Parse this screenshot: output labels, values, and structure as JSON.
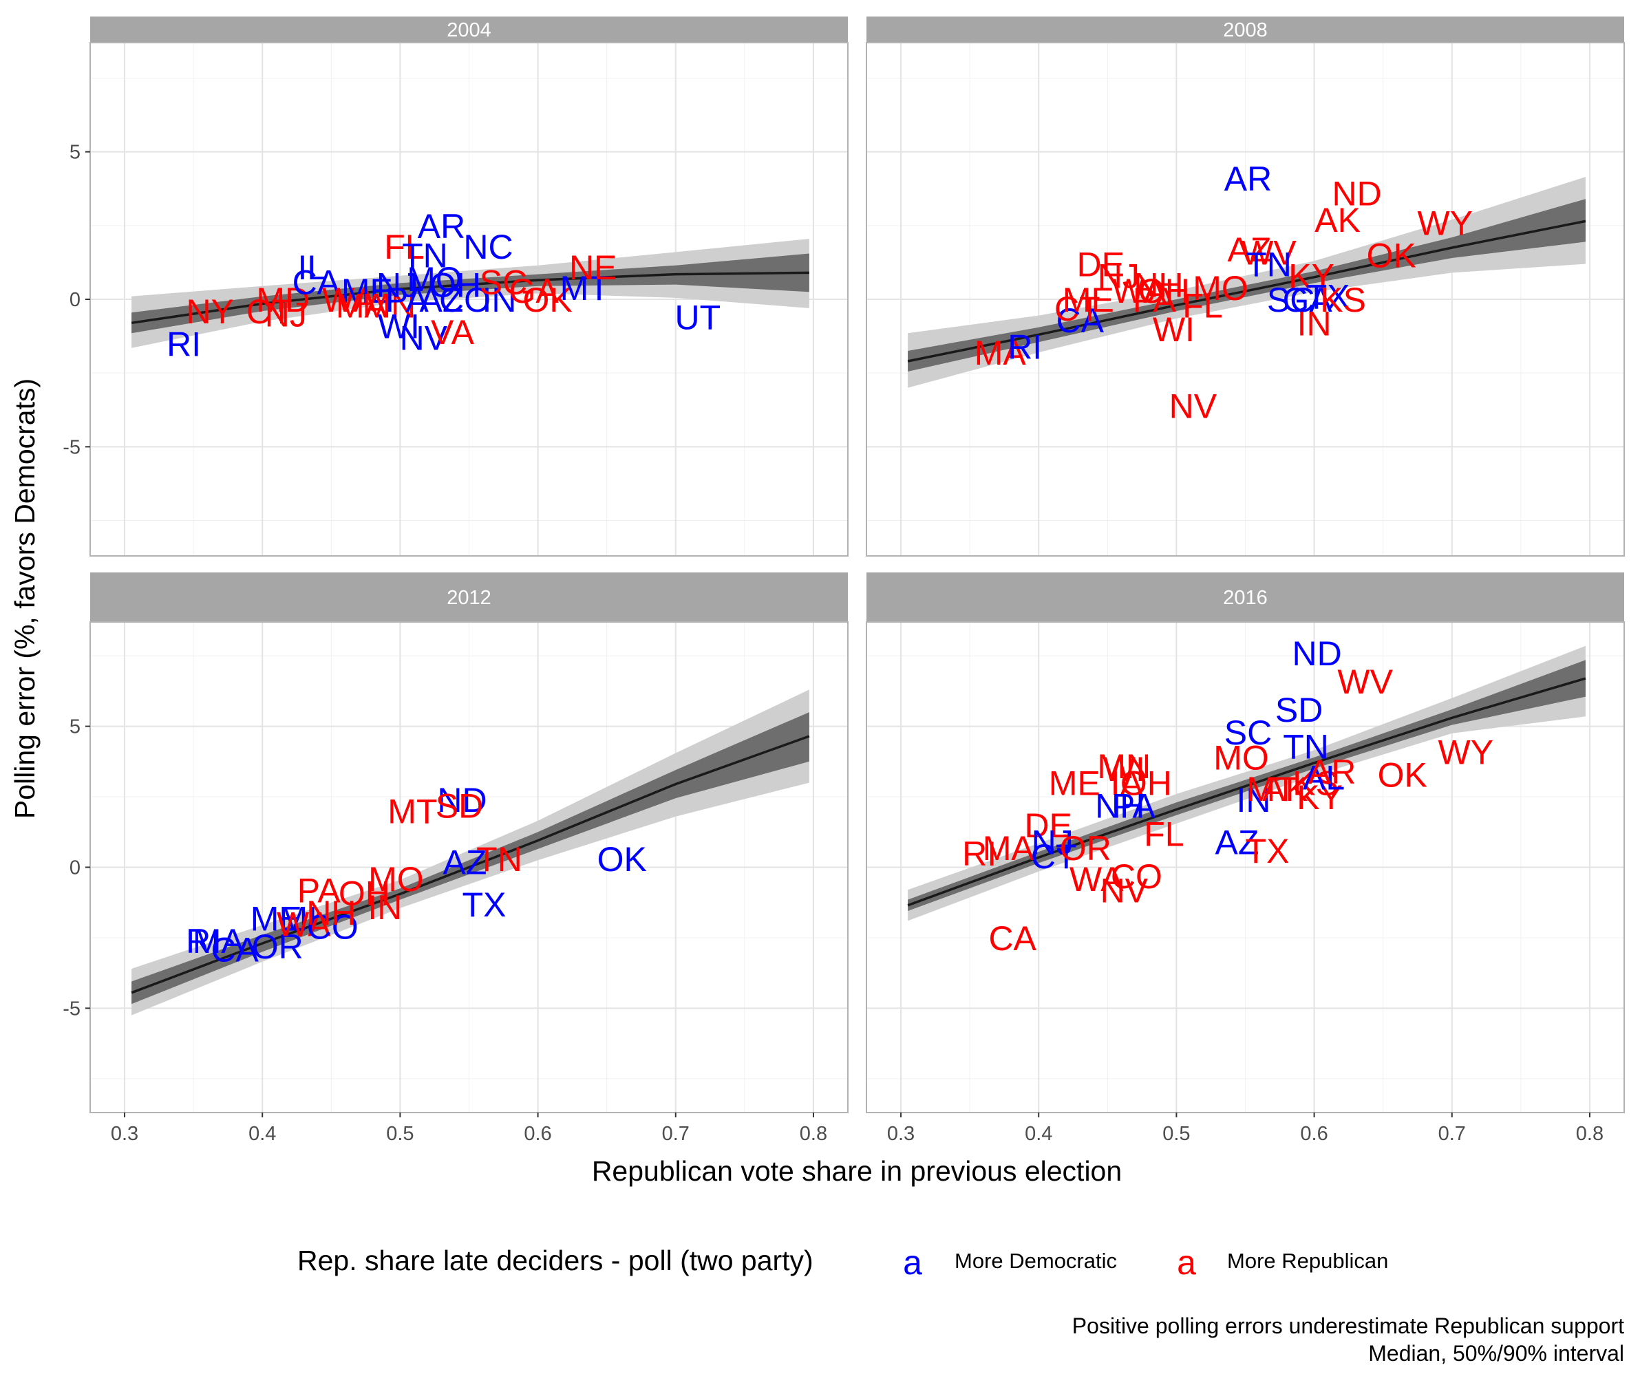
{
  "chart_data": {
    "type": "scatter",
    "facets": [
      "2004",
      "2008",
      "2012",
      "2016"
    ],
    "xlabel": "Republican vote share in previous election",
    "ylabel": "Polling error (%, favors Democrats)",
    "xlim": [
      0.275,
      0.825
    ],
    "ylim": [
      -8.7,
      8.7
    ],
    "x_ticks": [
      0.3,
      0.4,
      0.5,
      0.6,
      0.7,
      0.8
    ],
    "x_tick_labels": [
      "0.3",
      "0.4",
      "0.5",
      "0.6",
      "0.7",
      "0.8"
    ],
    "y_ticks": [
      -5,
      0,
      5
    ],
    "y_tick_labels": [
      "-5",
      "0",
      "5"
    ],
    "grid": true,
    "legend": {
      "title": "Rep. share late deciders - poll (two party)",
      "position": "bottom",
      "key_glyph": "a",
      "entries": [
        {
          "label": "More Democratic",
          "color": "#0000ff"
        },
        {
          "label": "More Republican",
          "color": "#ff0000"
        }
      ]
    },
    "caption": [
      "Positive polling errors underestimate Republican support",
      "Median, 50%/90% interval"
    ],
    "colors": {
      "dem": "#0000ff",
      "rep": "#ff0000",
      "line": "#1a1a1a",
      "band_inner": "#6e6e6e",
      "band_outer": "#cfcfcf",
      "strip": "#a6a6a6"
    },
    "panels": [
      {
        "title": "2004",
        "points": [
          {
            "label": "RI",
            "x": 0.343,
            "y": -1.5,
            "party": "dem"
          },
          {
            "label": "NY",
            "x": 0.362,
            "y": -0.4,
            "party": "rep"
          },
          {
            "label": "CT",
            "x": 0.405,
            "y": -0.4,
            "party": "rep"
          },
          {
            "label": "NJ",
            "x": 0.417,
            "y": -0.5,
            "party": "rep"
          },
          {
            "label": "MD",
            "x": 0.415,
            "y": 0.0,
            "party": "rep"
          },
          {
            "label": "IL",
            "x": 0.436,
            "y": 1.1,
            "party": "dem"
          },
          {
            "label": "CA",
            "x": 0.439,
            "y": 0.6,
            "party": "dem"
          },
          {
            "label": "WA",
            "x": 0.463,
            "y": 0.0,
            "party": "rep"
          },
          {
            "label": "ME",
            "x": 0.476,
            "y": 0.3,
            "party": "dem"
          },
          {
            "label": "MA",
            "x": 0.472,
            "y": -0.2,
            "party": "rep"
          },
          {
            "label": "MN",
            "x": 0.492,
            "y": -0.2,
            "party": "rep"
          },
          {
            "label": "WI",
            "x": 0.499,
            "y": -0.9,
            "party": "dem"
          },
          {
            "label": "NJ",
            "x": 0.498,
            "y": 0.5,
            "party": "dem"
          },
          {
            "label": "PA",
            "x": 0.505,
            "y": 0.0,
            "party": "dem"
          },
          {
            "label": "FL",
            "x": 0.503,
            "y": 1.8,
            "party": "rep"
          },
          {
            "label": "TN",
            "x": 0.518,
            "y": 1.5,
            "party": "dem"
          },
          {
            "label": "AR",
            "x": 0.53,
            "y": 2.5,
            "party": "dem"
          },
          {
            "label": "NC",
            "x": 0.564,
            "y": 1.8,
            "party": "dem"
          },
          {
            "label": "MO",
            "x": 0.525,
            "y": 0.7,
            "party": "dem"
          },
          {
            "label": "OH",
            "x": 0.54,
            "y": 0.5,
            "party": "dem"
          },
          {
            "label": "AZ",
            "x": 0.53,
            "y": 0.0,
            "party": "dem"
          },
          {
            "label": "CO",
            "x": 0.547,
            "y": 0.0,
            "party": "dem"
          },
          {
            "label": "IN",
            "x": 0.572,
            "y": 0.0,
            "party": "dem"
          },
          {
            "label": "SC",
            "x": 0.575,
            "y": 0.6,
            "party": "rep"
          },
          {
            "label": "GA",
            "x": 0.597,
            "y": 0.3,
            "party": "rep"
          },
          {
            "label": "OK",
            "x": 0.607,
            "y": 0.0,
            "party": "rep"
          },
          {
            "label": "MT",
            "x": 0.634,
            "y": 0.4,
            "party": "dem"
          },
          {
            "label": "NE",
            "x": 0.64,
            "y": 1.1,
            "party": "rep"
          },
          {
            "label": "NV",
            "x": 0.517,
            "y": -1.3,
            "party": "dem"
          },
          {
            "label": "VA",
            "x": 0.538,
            "y": -1.1,
            "party": "rep"
          },
          {
            "label": "UT",
            "x": 0.716,
            "y": -0.6,
            "party": "dem"
          }
        ],
        "trend": {
          "x": [
            0.305,
            0.4,
            0.5,
            0.6,
            0.7,
            0.797
          ],
          "median": [
            -0.8,
            -0.15,
            0.35,
            0.65,
            0.85,
            0.9
          ],
          "q50_lo": [
            -1.15,
            -0.4,
            0.15,
            0.45,
            0.5,
            0.25
          ],
          "q50_hi": [
            -0.45,
            0.1,
            0.55,
            0.85,
            1.15,
            1.55
          ],
          "q90_lo": [
            -1.65,
            -0.75,
            -0.1,
            0.2,
            0.05,
            -0.3
          ],
          "q90_hi": [
            0.1,
            0.45,
            0.8,
            1.15,
            1.6,
            2.05
          ]
        }
      },
      {
        "title": "2008",
        "points": [
          {
            "label": "MA",
            "x": 0.372,
            "y": -1.8,
            "party": "rep"
          },
          {
            "label": "RI",
            "x": 0.39,
            "y": -1.6,
            "party": "dem"
          },
          {
            "label": "CA",
            "x": 0.43,
            "y": -0.7,
            "party": "dem"
          },
          {
            "label": "CT",
            "x": 0.428,
            "y": -0.3,
            "party": "rep"
          },
          {
            "label": "ME",
            "x": 0.436,
            "y": 0.0,
            "party": "rep"
          },
          {
            "label": "DE",
            "x": 0.445,
            "y": 1.2,
            "party": "rep"
          },
          {
            "label": "NJ",
            "x": 0.458,
            "y": 0.8,
            "party": "rep"
          },
          {
            "label": "NH",
            "x": 0.487,
            "y": 0.5,
            "party": "rep"
          },
          {
            "label": "WA",
            "x": 0.473,
            "y": 0.3,
            "party": "rep"
          },
          {
            "label": "PA",
            "x": 0.484,
            "y": 0.0,
            "party": "rep"
          },
          {
            "label": "OH",
            "x": 0.491,
            "y": 0.3,
            "party": "rep"
          },
          {
            "label": "WI",
            "x": 0.498,
            "y": -1.0,
            "party": "rep"
          },
          {
            "label": "FL",
            "x": 0.519,
            "y": -0.2,
            "party": "rep"
          },
          {
            "label": "MO",
            "x": 0.532,
            "y": 0.4,
            "party": "rep"
          },
          {
            "label": "NV",
            "x": 0.512,
            "y": -3.6,
            "party": "rep"
          },
          {
            "label": "AR",
            "x": 0.552,
            "y": 4.1,
            "party": "dem"
          },
          {
            "label": "AZ",
            "x": 0.553,
            "y": 1.7,
            "party": "rep"
          },
          {
            "label": "WV",
            "x": 0.567,
            "y": 1.6,
            "party": "rep"
          },
          {
            "label": "TN",
            "x": 0.567,
            "y": 1.2,
            "party": "dem"
          },
          {
            "label": "KY",
            "x": 0.598,
            "y": 0.8,
            "party": "rep"
          },
          {
            "label": "SC",
            "x": 0.583,
            "y": 0.0,
            "party": "dem"
          },
          {
            "label": "GA",
            "x": 0.595,
            "y": 0.0,
            "party": "dem"
          },
          {
            "label": "TX",
            "x": 0.61,
            "y": 0.1,
            "party": "dem"
          },
          {
            "label": "KS",
            "x": 0.621,
            "y": 0.0,
            "party": "rep"
          },
          {
            "label": "IN",
            "x": 0.6,
            "y": -0.8,
            "party": "rep"
          },
          {
            "label": "ND",
            "x": 0.631,
            "y": 3.6,
            "party": "rep"
          },
          {
            "label": "AK",
            "x": 0.617,
            "y": 2.7,
            "party": "rep"
          },
          {
            "label": "OK",
            "x": 0.656,
            "y": 1.5,
            "party": "rep"
          },
          {
            "label": "WY",
            "x": 0.695,
            "y": 2.6,
            "party": "rep"
          }
        ],
        "trend": {
          "x": [
            0.305,
            0.4,
            0.5,
            0.6,
            0.7,
            0.797
          ],
          "median": [
            -2.1,
            -1.2,
            -0.2,
            0.75,
            1.75,
            2.65
          ],
          "q50_lo": [
            -2.45,
            -1.45,
            -0.4,
            0.55,
            1.4,
            1.95
          ],
          "q50_hi": [
            -1.75,
            -0.95,
            0.0,
            0.95,
            2.1,
            3.4
          ],
          "q90_lo": [
            -3.0,
            -1.8,
            -0.65,
            0.25,
            0.9,
            1.2
          ],
          "q90_hi": [
            -1.15,
            -0.55,
            0.3,
            1.3,
            2.7,
            4.15
          ]
        }
      },
      {
        "title": "2012",
        "points": [
          {
            "label": "RI",
            "x": 0.357,
            "y": -2.6,
            "party": "dem"
          },
          {
            "label": "MA",
            "x": 0.368,
            "y": -2.6,
            "party": "dem"
          },
          {
            "label": "CA",
            "x": 0.38,
            "y": -2.9,
            "party": "dem"
          },
          {
            "label": "OR",
            "x": 0.411,
            "y": -2.8,
            "party": "dem"
          },
          {
            "label": "ME",
            "x": 0.41,
            "y": -1.8,
            "party": "dem"
          },
          {
            "label": "MI",
            "x": 0.426,
            "y": -1.8,
            "party": "dem"
          },
          {
            "label": "WA",
            "x": 0.43,
            "y": -2.0,
            "party": "rep"
          },
          {
            "label": "CO",
            "x": 0.451,
            "y": -2.1,
            "party": "dem"
          },
          {
            "label": "NH",
            "x": 0.45,
            "y": -1.6,
            "party": "rep"
          },
          {
            "label": "PA",
            "x": 0.441,
            "y": -0.8,
            "party": "rep"
          },
          {
            "label": "OH",
            "x": 0.474,
            "y": -0.9,
            "party": "rep"
          },
          {
            "label": "MO",
            "x": 0.497,
            "y": -0.4,
            "party": "rep"
          },
          {
            "label": "IN",
            "x": 0.489,
            "y": -1.4,
            "party": "rep"
          },
          {
            "label": "MT",
            "x": 0.509,
            "y": 2.0,
            "party": "rep"
          },
          {
            "label": "ND",
            "x": 0.545,
            "y": 2.4,
            "party": "dem"
          },
          {
            "label": "SD",
            "x": 0.543,
            "y": 2.2,
            "party": "rep"
          },
          {
            "label": "AZ",
            "x": 0.547,
            "y": 0.2,
            "party": "dem"
          },
          {
            "label": "TN",
            "x": 0.572,
            "y": 0.3,
            "party": "rep"
          },
          {
            "label": "TX",
            "x": 0.561,
            "y": -1.3,
            "party": "dem"
          },
          {
            "label": "OK",
            "x": 0.661,
            "y": 0.3,
            "party": "dem"
          }
        ],
        "trend": {
          "x": [
            0.305,
            0.4,
            0.5,
            0.6,
            0.7,
            0.797
          ],
          "median": [
            -4.45,
            -2.7,
            -0.95,
            0.95,
            2.95,
            4.65
          ],
          "q50_lo": [
            -4.85,
            -3.0,
            -1.15,
            0.65,
            2.45,
            3.75
          ],
          "q50_hi": [
            -4.05,
            -2.4,
            -0.75,
            1.25,
            3.45,
            5.5
          ],
          "q90_lo": [
            -5.25,
            -3.35,
            -1.45,
            0.25,
            1.8,
            3.0
          ],
          "q90_hi": [
            -3.6,
            -2.05,
            -0.45,
            1.65,
            4.05,
            6.3
          ]
        }
      },
      {
        "title": "2016",
        "points": [
          {
            "label": "CA",
            "x": 0.381,
            "y": -2.5,
            "party": "rep"
          },
          {
            "label": "RI",
            "x": 0.357,
            "y": 0.5,
            "party": "rep"
          },
          {
            "label": "MA",
            "x": 0.378,
            "y": 0.7,
            "party": "rep"
          },
          {
            "label": "DE",
            "x": 0.407,
            "y": 1.5,
            "party": "rep"
          },
          {
            "label": "NJ",
            "x": 0.41,
            "y": 0.9,
            "party": "dem"
          },
          {
            "label": "CT",
            "x": 0.411,
            "y": 0.4,
            "party": "dem"
          },
          {
            "label": "OR",
            "x": 0.434,
            "y": 0.7,
            "party": "rep"
          },
          {
            "label": "WA",
            "x": 0.442,
            "y": -0.4,
            "party": "rep"
          },
          {
            "label": "CO",
            "x": 0.471,
            "y": -0.3,
            "party": "rep"
          },
          {
            "label": "NV",
            "x": 0.462,
            "y": -0.8,
            "party": "rep"
          },
          {
            "label": "ME",
            "x": 0.426,
            "y": 3.0,
            "party": "rep"
          },
          {
            "label": "MN",
            "x": 0.462,
            "y": 3.6,
            "party": "rep"
          },
          {
            "label": "WI",
            "x": 0.462,
            "y": 3.5,
            "party": "rep"
          },
          {
            "label": "IA",
            "x": 0.464,
            "y": 3.0,
            "party": "rep"
          },
          {
            "label": "OH",
            "x": 0.478,
            "y": 3.0,
            "party": "rep"
          },
          {
            "label": "NH",
            "x": 0.459,
            "y": 2.2,
            "party": "dem"
          },
          {
            "label": "PA",
            "x": 0.469,
            "y": 2.2,
            "party": "dem"
          },
          {
            "label": "FL",
            "x": 0.491,
            "y": 1.2,
            "party": "rep"
          },
          {
            "label": "MO",
            "x": 0.547,
            "y": 3.9,
            "party": "rep"
          },
          {
            "label": "SC",
            "x": 0.552,
            "y": 4.8,
            "party": "dem"
          },
          {
            "label": "IN",
            "x": 0.556,
            "y": 2.4,
            "party": "dem"
          },
          {
            "label": "AZ",
            "x": 0.544,
            "y": 0.9,
            "party": "dem"
          },
          {
            "label": "TX",
            "x": 0.566,
            "y": 0.6,
            "party": "rep"
          },
          {
            "label": "MT",
            "x": 0.569,
            "y": 2.8,
            "party": "rep"
          },
          {
            "label": "AK",
            "x": 0.579,
            "y": 2.8,
            "party": "rep"
          },
          {
            "label": "KS",
            "x": 0.601,
            "y": 3.0,
            "party": "rep"
          },
          {
            "label": "KY",
            "x": 0.604,
            "y": 2.5,
            "party": "rep"
          },
          {
            "label": "AL",
            "x": 0.607,
            "y": 3.2,
            "party": "dem"
          },
          {
            "label": "AR",
            "x": 0.613,
            "y": 3.4,
            "party": "rep"
          },
          {
            "label": "TN",
            "x": 0.594,
            "y": 4.3,
            "party": "dem"
          },
          {
            "label": "SD",
            "x": 0.589,
            "y": 5.6,
            "party": "dem"
          },
          {
            "label": "WV",
            "x": 0.637,
            "y": 6.6,
            "party": "rep"
          },
          {
            "label": "ND",
            "x": 0.602,
            "y": 7.6,
            "party": "dem"
          },
          {
            "label": "OK",
            "x": 0.664,
            "y": 3.3,
            "party": "rep"
          },
          {
            "label": "WY",
            "x": 0.71,
            "y": 4.1,
            "party": "rep"
          }
        ],
        "trend": {
          "x": [
            0.305,
            0.4,
            0.5,
            0.6,
            0.7,
            0.797
          ],
          "median": [
            -1.35,
            0.35,
            2.05,
            3.7,
            5.3,
            6.7
          ],
          "q50_lo": [
            -1.55,
            0.15,
            1.85,
            3.5,
            5.05,
            6.05
          ],
          "q50_hi": [
            -1.15,
            0.55,
            2.3,
            3.9,
            5.6,
            7.35
          ],
          "q90_lo": [
            -1.9,
            -0.15,
            1.55,
            3.25,
            4.75,
            5.35
          ],
          "q90_hi": [
            -0.8,
            0.85,
            2.6,
            4.15,
            6.0,
            7.85
          ]
        }
      }
    ]
  }
}
